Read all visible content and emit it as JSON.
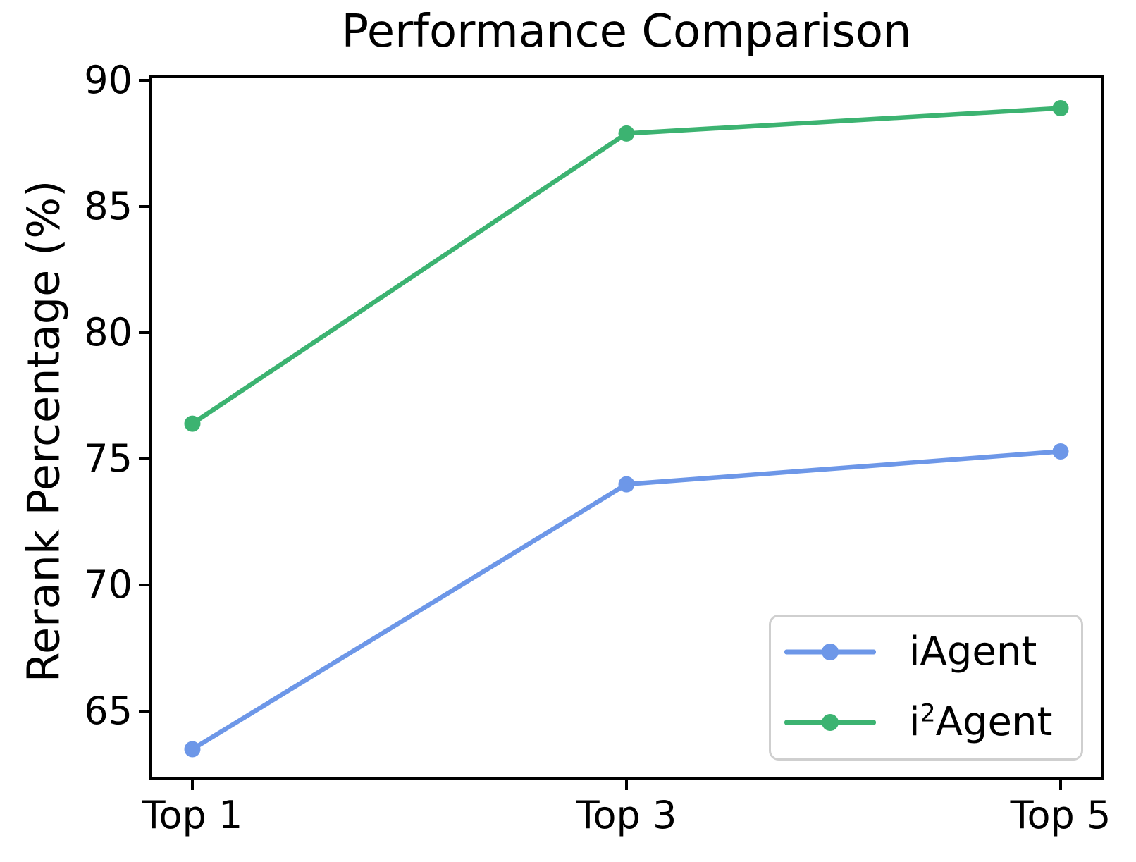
{
  "chart_data": {
    "type": "line",
    "title": "Performance Comparison",
    "xlabel": "",
    "ylabel": "Rerank Percentage (%)",
    "categories": [
      "Top 1",
      "Top 3",
      "Top 5"
    ],
    "series": [
      {
        "name": "iAgent",
        "values": [
          63.5,
          74.0,
          75.3
        ],
        "color": "#6D97E8"
      },
      {
        "name": "i2Agent",
        "values": [
          76.4,
          87.9,
          88.9
        ],
        "color": "#3CB371"
      }
    ],
    "ylim": [
      62.3,
      90.2
    ],
    "yticks": [
      65,
      70,
      75,
      80,
      85,
      90
    ],
    "grid": false,
    "legend_position": "lower right",
    "background": "#FFFFFF",
    "spine_color": "#000000"
  },
  "legend": {
    "entries": [
      {
        "pre": "iAgent",
        "sup": "",
        "post": ""
      },
      {
        "pre": "i",
        "sup": "2",
        "post": "Agent"
      }
    ]
  }
}
